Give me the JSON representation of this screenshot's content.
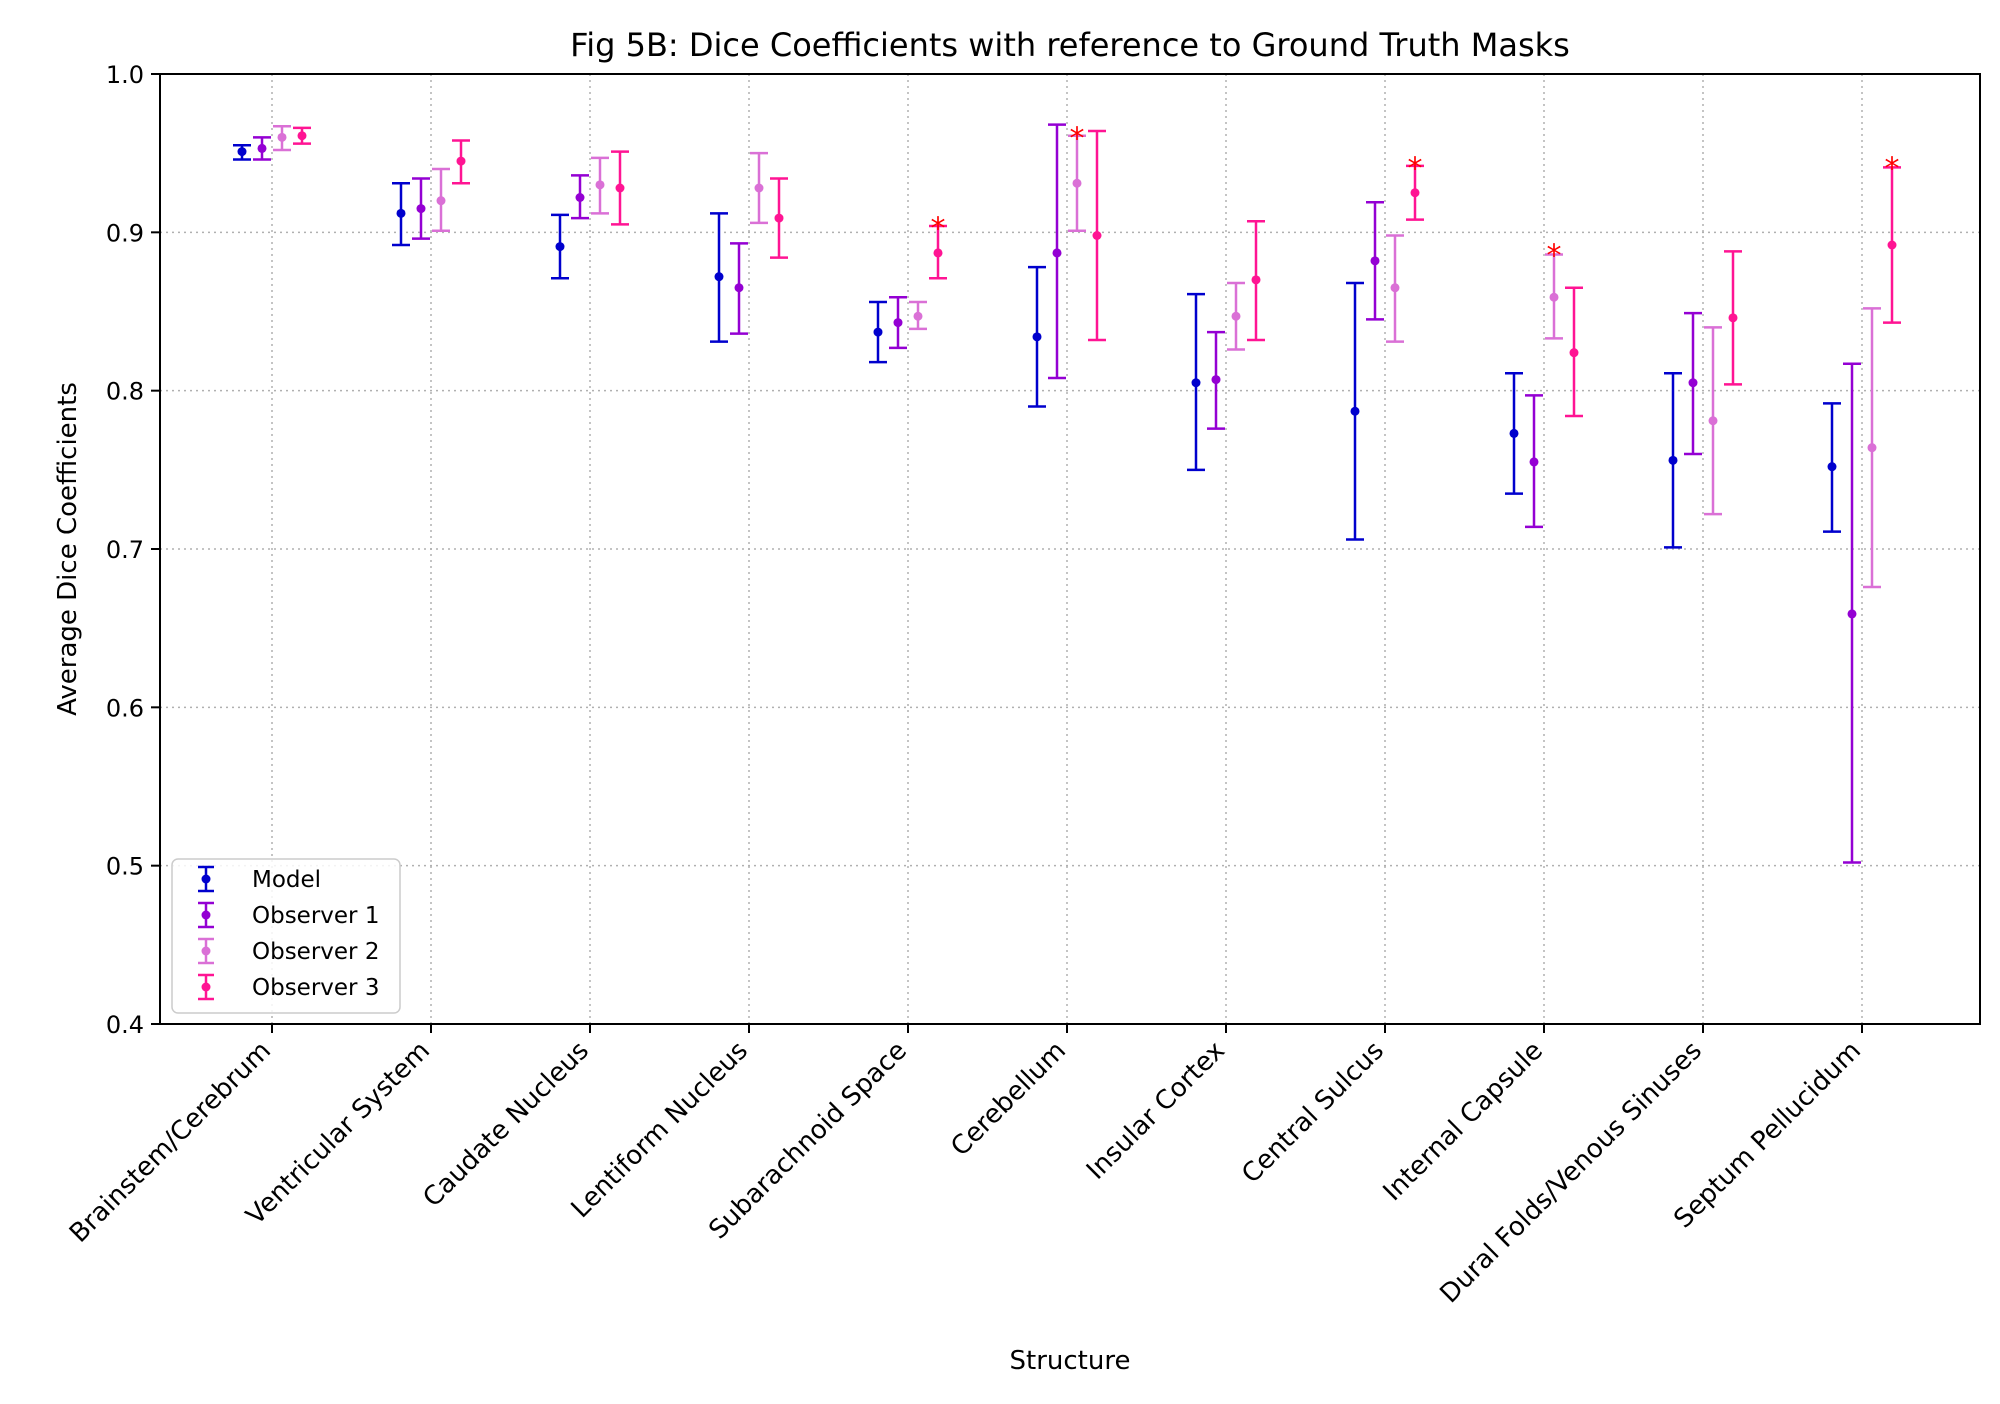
{
  "chart_data": {
    "type": "scatter",
    "title": "Fig 5B: Dice Coefficients with reference to Ground Truth Masks",
    "xlabel": "Structure",
    "ylabel": "Average Dice Coefficients",
    "ylim": [
      0.4,
      1.0
    ],
    "yticks": [
      "0.4",
      "0.5",
      "0.6",
      "0.7",
      "0.8",
      "0.9",
      "1.0"
    ],
    "grid": true,
    "legend_position": "lower-left",
    "categories": [
      "Brainstem/Cerebrum",
      "Ventricular System",
      "Caudate Nucleus",
      "Lentiform Nucleus",
      "Subarachnoid Space",
      "Cerebellum",
      "Insular Cortex",
      "Central Sulcus",
      "Internal Capsule",
      "Dural Folds/Venous Sinuses",
      "Septum Pellucidum"
    ],
    "series": [
      {
        "name": "Model",
        "color": "#0000cd",
        "values": [
          0.951,
          0.912,
          0.891,
          0.872,
          0.837,
          0.834,
          0.805,
          0.787,
          0.773,
          0.756,
          0.752
        ],
        "lower": [
          0.946,
          0.892,
          0.871,
          0.831,
          0.818,
          0.79,
          0.75,
          0.706,
          0.735,
          0.701,
          0.711
        ],
        "upper": [
          0.955,
          0.931,
          0.911,
          0.912,
          0.856,
          0.878,
          0.861,
          0.868,
          0.811,
          0.811,
          0.792
        ]
      },
      {
        "name": "Observer 1",
        "color": "#9400d3",
        "values": [
          0.953,
          0.915,
          0.922,
          0.865,
          0.843,
          0.887,
          0.807,
          0.882,
          0.755,
          0.805,
          0.659
        ],
        "lower": [
          0.946,
          0.896,
          0.909,
          0.836,
          0.827,
          0.808,
          0.776,
          0.845,
          0.714,
          0.76,
          0.502
        ],
        "upper": [
          0.96,
          0.934,
          0.936,
          0.893,
          0.859,
          0.968,
          0.837,
          0.919,
          0.797,
          0.849,
          0.817
        ]
      },
      {
        "name": "Observer 2",
        "color": "#da70d6",
        "values": [
          0.96,
          0.92,
          0.93,
          0.928,
          0.847,
          0.931,
          0.847,
          0.865,
          0.859,
          0.781,
          0.764
        ],
        "lower": [
          0.952,
          0.901,
          0.912,
          0.906,
          0.839,
          0.901,
          0.826,
          0.831,
          0.833,
          0.722,
          0.676
        ],
        "upper": [
          0.967,
          0.94,
          0.947,
          0.95,
          0.856,
          0.961,
          0.868,
          0.898,
          0.886,
          0.84,
          0.852
        ]
      },
      {
        "name": "Observer 3",
        "color": "#ff1493",
        "values": [
          0.961,
          0.945,
          0.928,
          0.909,
          0.887,
          0.898,
          0.87,
          0.925,
          0.824,
          0.846,
          0.892
        ],
        "lower": [
          0.956,
          0.931,
          0.905,
          0.884,
          0.871,
          0.832,
          0.832,
          0.908,
          0.784,
          0.804,
          0.843
        ],
        "upper": [
          0.966,
          0.958,
          0.951,
          0.934,
          0.904,
          0.964,
          0.907,
          0.942,
          0.865,
          0.888,
          0.941
        ]
      }
    ],
    "annotations": [
      {
        "text": "*",
        "category_index": 4,
        "series_index": 3,
        "y": 0.91,
        "color": "#ff0000"
      },
      {
        "text": "*",
        "category_index": 5,
        "series_index": 2,
        "y": 0.967,
        "color": "#ff0000"
      },
      {
        "text": "*",
        "category_index": 7,
        "series_index": 3,
        "y": 0.948,
        "color": "#ff0000"
      },
      {
        "text": "*",
        "category_index": 8,
        "series_index": 2,
        "y": 0.893,
        "color": "#ff0000"
      },
      {
        "text": "*",
        "category_index": 10,
        "series_index": 3,
        "y": 0.948,
        "color": "#ff0000"
      }
    ]
  }
}
